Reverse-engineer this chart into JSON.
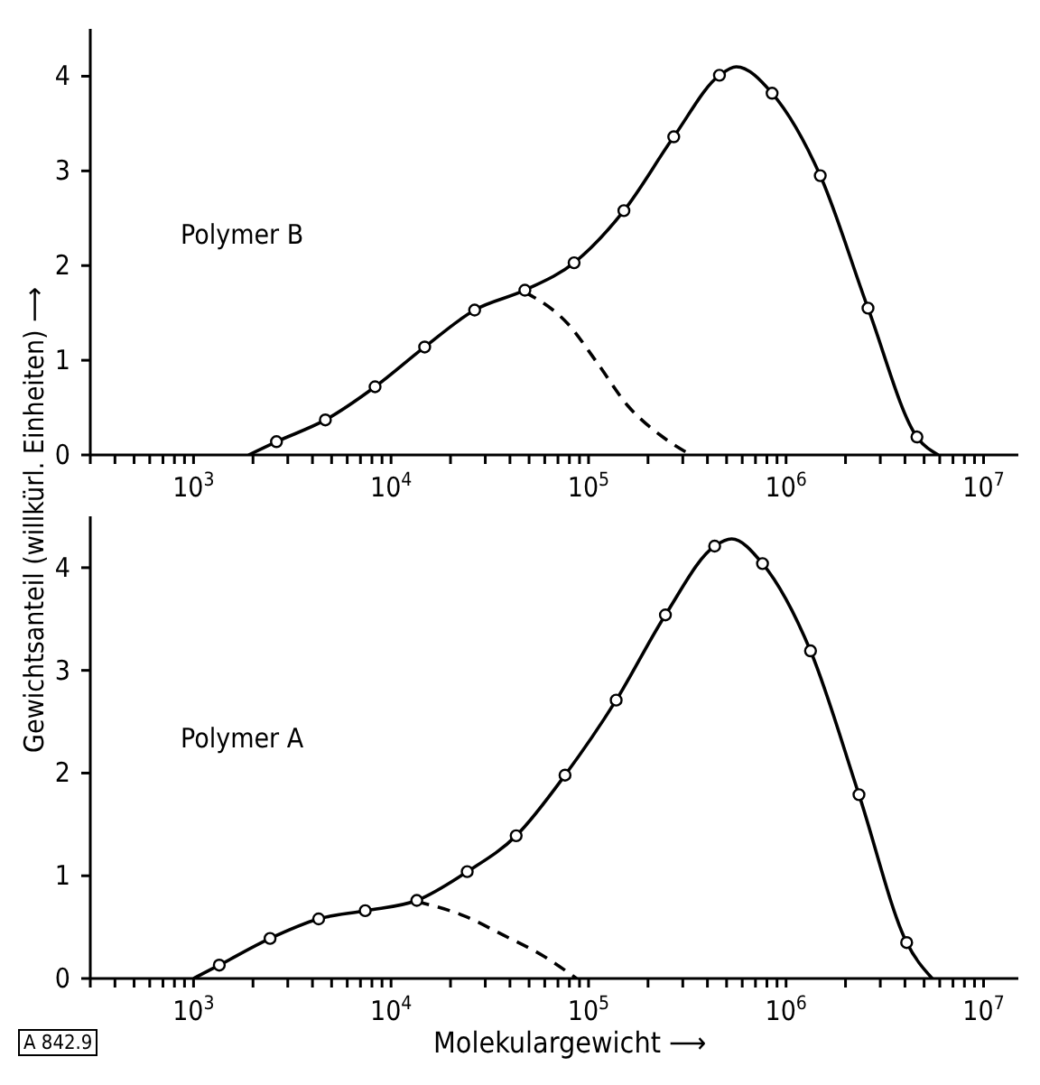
{
  "chart_data": [
    {
      "type": "line",
      "log": "x",
      "ylabel": "Gewichtsanteil (willkürl. Einheiten) ⟶",
      "annotations": [
        "Polymer B"
      ],
      "xlim": [
        300,
        15000000
      ],
      "ylim": [
        0,
        4.5
      ],
      "yticks": [
        0,
        1,
        2,
        3,
        4
      ],
      "xticks": [
        {
          "value": 300,
          "label": null
        },
        {
          "value": 400,
          "label": null
        },
        {
          "value": 500,
          "label": null
        },
        {
          "value": 600,
          "label": null
        },
        {
          "value": 700,
          "label": null
        },
        {
          "value": 800,
          "label": null
        },
        {
          "value": 900,
          "label": null
        },
        {
          "value": 1000,
          "label": "10$^{3}$"
        },
        {
          "value": 2000,
          "label": null
        },
        {
          "value": 3000,
          "label": null
        },
        {
          "value": 4000,
          "label": null
        },
        {
          "value": 5000,
          "label": null
        },
        {
          "value": 6000,
          "label": null
        },
        {
          "value": 7000,
          "label": null
        },
        {
          "value": 8000,
          "label": null
        },
        {
          "value": 9000,
          "label": null
        },
        {
          "value": 10000,
          "label": "10$^{4}$"
        },
        {
          "value": 20000,
          "label": null
        },
        {
          "value": 30000,
          "label": null
        },
        {
          "value": 40000,
          "label": null
        },
        {
          "value": 50000,
          "label": null
        },
        {
          "value": 60000,
          "label": null
        },
        {
          "value": 70000,
          "label": null
        },
        {
          "value": 80000,
          "label": null
        },
        {
          "value": 90000,
          "label": null
        },
        {
          "value": 100000,
          "label": "10$^{5}$"
        },
        {
          "value": 200000,
          "label": null
        },
        {
          "value": 300000,
          "label": null
        },
        {
          "value": 400000,
          "label": null
        },
        {
          "value": 500000,
          "label": null
        },
        {
          "value": 600000,
          "label": null
        },
        {
          "value": 700000,
          "label": null
        },
        {
          "value": 800000,
          "label": null
        },
        {
          "value": 900000,
          "label": null
        },
        {
          "value": 1000000,
          "label": "10$^{6}$"
        },
        {
          "value": 2000000,
          "label": null
        },
        {
          "value": 3000000,
          "label": null
        },
        {
          "value": 4000000,
          "label": null
        },
        {
          "value": 5000000,
          "label": null
        },
        {
          "value": 6000000,
          "label": null
        },
        {
          "value": 7000000,
          "label": null
        },
        {
          "value": 8000000,
          "label": null
        },
        {
          "value": 9000000,
          "label": null
        },
        {
          "value": 10000000,
          "label": "10$^{7}$"
        }
      ],
      "series": [
        {
          "color": "#000000",
          "line_style": "solid",
          "x": [
            1900,
            2630,
            4650,
            8300,
            14800,
            26500,
            47600,
            84500,
            151000,
            270000,
            460000,
            560000,
            850000,
            1490000,
            2600000,
            4600000,
            5900000
          ],
          "values": [
            0,
            0.14,
            0.37,
            0.72,
            1.14,
            1.53,
            1.74,
            2.03,
            2.58,
            3.36,
            4.01,
            4.1,
            3.82,
            2.95,
            1.55,
            0.19,
            0
          ]
        },
        {
          "type": "scatter",
          "color": "#000000",
          "marker": "circle",
          "x": [
            2630,
            4650,
            8300,
            14800,
            26500,
            47600,
            84500,
            151000,
            270000,
            460000,
            850000,
            1490000,
            2600000,
            4600000
          ],
          "values": [
            0.14,
            0.37,
            0.72,
            1.14,
            1.53,
            1.74,
            2.03,
            2.58,
            3.36,
            4.01,
            3.82,
            2.95,
            1.55,
            0.19
          ]
        },
        {
          "color": "#000000",
          "line_style": "dashed",
          "x": [
            47600,
            79000,
            110000,
            158000,
            234000,
            330000
          ],
          "values": [
            1.72,
            1.38,
            0.98,
            0.52,
            0.2,
            0
          ]
        }
      ]
    },
    {
      "type": "line",
      "log": "x",
      "xlabel": "Molekulargewicht ⟶",
      "annotations": [
        "Polymer A",
        "A 842.9"
      ],
      "xlim": [
        300,
        15000000
      ],
      "ylim": [
        0,
        4.5
      ],
      "yticks": [
        0,
        1,
        2,
        3,
        4
      ],
      "xticks": [
        {
          "value": 300,
          "label": null
        },
        {
          "value": 400,
          "label": null
        },
        {
          "value": 500,
          "label": null
        },
        {
          "value": 600,
          "label": null
        },
        {
          "value": 700,
          "label": null
        },
        {
          "value": 800,
          "label": null
        },
        {
          "value": 900,
          "label": null
        },
        {
          "value": 1000,
          "label": "10$^{3}$"
        },
        {
          "value": 2000,
          "label": null
        },
        {
          "value": 3000,
          "label": null
        },
        {
          "value": 4000,
          "label": null
        },
        {
          "value": 5000,
          "label": null
        },
        {
          "value": 6000,
          "label": null
        },
        {
          "value": 7000,
          "label": null
        },
        {
          "value": 8000,
          "label": null
        },
        {
          "value": 9000,
          "label": null
        },
        {
          "value": 10000,
          "label": "10$^{4}$"
        },
        {
          "value": 20000,
          "label": null
        },
        {
          "value": 30000,
          "label": null
        },
        {
          "value": 40000,
          "label": null
        },
        {
          "value": 50000,
          "label": null
        },
        {
          "value": 60000,
          "label": null
        },
        {
          "value": 70000,
          "label": null
        },
        {
          "value": 80000,
          "label": null
        },
        {
          "value": 90000,
          "label": null
        },
        {
          "value": 100000,
          "label": "10$^{5}$"
        },
        {
          "value": 200000,
          "label": null
        },
        {
          "value": 300000,
          "label": null
        },
        {
          "value": 400000,
          "label": null
        },
        {
          "value": 500000,
          "label": null
        },
        {
          "value": 600000,
          "label": null
        },
        {
          "value": 700000,
          "label": null
        },
        {
          "value": 800000,
          "label": null
        },
        {
          "value": 900000,
          "label": null
        },
        {
          "value": 1000000,
          "label": "10$^{6}$"
        },
        {
          "value": 2000000,
          "label": null
        },
        {
          "value": 3000000,
          "label": null
        },
        {
          "value": 4000000,
          "label": null
        },
        {
          "value": 5000000,
          "label": null
        },
        {
          "value": 6000000,
          "label": null
        },
        {
          "value": 7000000,
          "label": null
        },
        {
          "value": 8000000,
          "label": null
        },
        {
          "value": 9000000,
          "label": null
        },
        {
          "value": 10000000,
          "label": "10$^{7}$"
        }
      ],
      "series": [
        {
          "color": "#000000",
          "line_style": "solid",
          "x": [
            1000,
            1350,
            2440,
            4300,
            7400,
            13500,
            24300,
            43000,
            76000,
            138000,
            245000,
            435000,
            530000,
            760000,
            1330000,
            2340000,
            4080000,
            5500000
          ],
          "values": [
            0,
            0.13,
            0.39,
            0.58,
            0.66,
            0.76,
            1.04,
            1.39,
            1.98,
            2.71,
            3.54,
            4.21,
            4.28,
            4.04,
            3.19,
            1.79,
            0.35,
            0
          ]
        },
        {
          "type": "scatter",
          "color": "#000000",
          "marker": "circle",
          "x": [
            1350,
            2440,
            4300,
            7400,
            13500,
            24300,
            43000,
            76000,
            138000,
            245000,
            435000,
            760000,
            1330000,
            2340000,
            4080000
          ],
          "values": [
            0.13,
            0.39,
            0.58,
            0.66,
            0.76,
            1.04,
            1.39,
            1.98,
            2.71,
            3.54,
            4.21,
            4.04,
            3.19,
            1.79,
            0.35
          ]
        },
        {
          "color": "#000000",
          "line_style": "dashed",
          "x": [
            13500,
            23400,
            37200,
            59000,
            87000
          ],
          "values": [
            0.75,
            0.61,
            0.42,
            0.22,
            0
          ]
        }
      ]
    }
  ]
}
